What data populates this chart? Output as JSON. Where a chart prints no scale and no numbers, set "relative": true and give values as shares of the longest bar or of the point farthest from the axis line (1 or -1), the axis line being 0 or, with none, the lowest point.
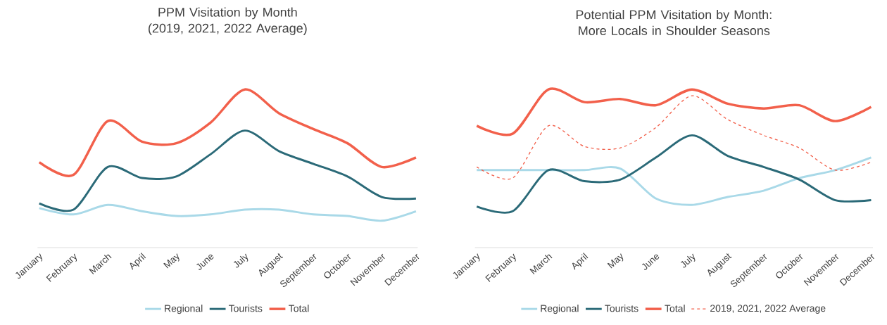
{
  "chart_data": [
    {
      "type": "line",
      "title": "PPM Visitation by Month (2019, 2021, 2022 Average)",
      "relative": true,
      "legend": "bottom",
      "categories": [
        "January",
        "February",
        "March",
        "April",
        "May",
        "June",
        "July",
        "August",
        "September",
        "October",
        "November",
        "December"
      ],
      "series": [
        {
          "name": "Regional",
          "color": "#a9d9e8",
          "values": [
            0.25,
            0.21,
            0.27,
            0.23,
            0.2,
            0.21,
            0.24,
            0.24,
            0.21,
            0.2,
            0.17,
            0.23
          ]
        },
        {
          "name": "Tourists",
          "color": "#2b6a78",
          "values": [
            0.28,
            0.24,
            0.51,
            0.44,
            0.45,
            0.59,
            0.74,
            0.61,
            0.53,
            0.45,
            0.32,
            0.31
          ]
        },
        {
          "name": "Total",
          "color": "#f2604b",
          "values": [
            0.54,
            0.46,
            0.8,
            0.67,
            0.66,
            0.79,
            1.0,
            0.85,
            0.75,
            0.66,
            0.51,
            0.57
          ]
        }
      ]
    },
    {
      "type": "line",
      "title": "Potential PPM Visitation by Month: More Locals in Shoulder Seasons",
      "relative": true,
      "legend": "bottom",
      "categories": [
        "January",
        "February",
        "March",
        "April",
        "May",
        "June",
        "July",
        "August",
        "September",
        "October",
        "November",
        "December"
      ],
      "series": [
        {
          "name": "Regional",
          "color": "#a9d9e8",
          "values": [
            0.49,
            0.49,
            0.49,
            0.49,
            0.5,
            0.31,
            0.27,
            0.32,
            0.36,
            0.44,
            0.49,
            0.57
          ]
        },
        {
          "name": "Tourists",
          "color": "#2b6a78",
          "values": [
            0.26,
            0.23,
            0.49,
            0.42,
            0.43,
            0.57,
            0.71,
            0.58,
            0.51,
            0.43,
            0.3,
            0.3
          ]
        },
        {
          "name": "Total",
          "color": "#f2604b",
          "values": [
            0.77,
            0.72,
            1.0,
            0.92,
            0.94,
            0.9,
            1.0,
            0.91,
            0.88,
            0.9,
            0.8,
            0.89
          ]
        },
        {
          "name": "2019, 2021, 2022 Average",
          "color": "#f2604b",
          "line_style": "dashed",
          "values": [
            0.51,
            0.44,
            0.77,
            0.64,
            0.63,
            0.76,
            0.96,
            0.81,
            0.71,
            0.63,
            0.49,
            0.54
          ]
        }
      ]
    }
  ]
}
